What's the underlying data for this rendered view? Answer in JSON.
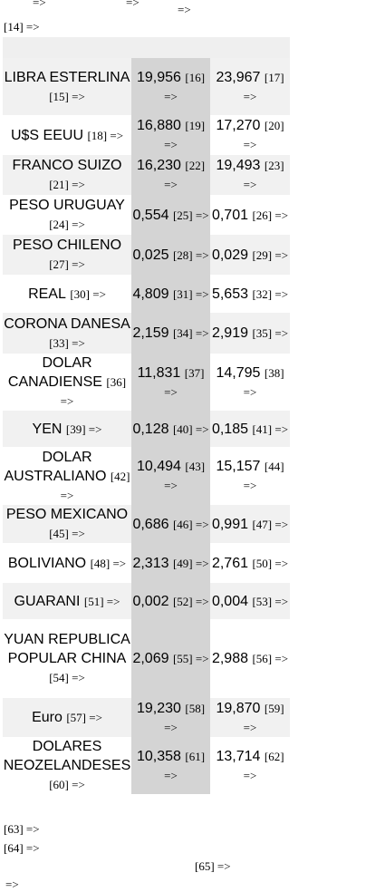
{
  "top_fragments": [
    "=>",
    "=>",
    "=>"
  ],
  "ref_14": "[14] =>",
  "rows": [
    {
      "currency": "LIBRA ESTERLINA",
      "ref_cur": "[15] =>",
      "buy": "19,956",
      "ref_buy": "[16] =>",
      "sell": "23,967",
      "ref_sell": "[17] =>"
    },
    {
      "currency": "U$S EEUU",
      "ref_cur": "[18] =>",
      "buy": "16,880",
      "ref_buy": "[19] =>",
      "sell": "17,270",
      "ref_sell": "[20] =>"
    },
    {
      "currency": "FRANCO SUIZO",
      "ref_cur": "[21] =>",
      "buy": "16,230",
      "ref_buy": "[22] =>",
      "sell": "19,493",
      "ref_sell": "[23] =>"
    },
    {
      "currency": "PESO URUGUAY",
      "ref_cur": "[24] =>",
      "buy": "0,554",
      "ref_buy": "[25] =>",
      "sell": "0,701",
      "ref_sell": "[26] =>"
    },
    {
      "currency": "PESO CHILENO",
      "ref_cur": "[27] =>",
      "buy": "0,025",
      "ref_buy": "[28] =>",
      "sell": "0,029",
      "ref_sell": "[29] =>"
    },
    {
      "currency": "REAL",
      "ref_cur": "[30] =>",
      "buy": "4,809",
      "ref_buy": "[31] =>",
      "sell": "5,653",
      "ref_sell": "[32] =>"
    },
    {
      "currency": "CORONA DANESA",
      "ref_cur": "[33] =>",
      "buy": "2,159",
      "ref_buy": "[34] =>",
      "sell": "2,919",
      "ref_sell": "[35] =>"
    },
    {
      "currency": "DOLAR CANADIENSE",
      "ref_cur": "[36] =>",
      "buy": "11,831",
      "ref_buy": "[37] =>",
      "sell": "14,795",
      "ref_sell": "[38] =>"
    },
    {
      "currency": "YEN",
      "ref_cur": "[39] =>",
      "buy": "0,128",
      "ref_buy": "[40] =>",
      "sell": "0,185",
      "ref_sell": "[41] =>"
    },
    {
      "currency": "DOLAR AUSTRALIANO",
      "ref_cur": "[42] =>",
      "buy": "10,494",
      "ref_buy": "[43] =>",
      "sell": "15,157",
      "ref_sell": "[44] =>"
    },
    {
      "currency": "PESO MEXICANO",
      "ref_cur": "[45] =>",
      "buy": "0,686",
      "ref_buy": "[46] =>",
      "sell": "0,991",
      "ref_sell": "[47] =>"
    },
    {
      "currency": "BOLIVIANO",
      "ref_cur": "[48] =>",
      "buy": "2,313",
      "ref_buy": "[49] =>",
      "sell": "2,761",
      "ref_sell": "[50] =>"
    },
    {
      "currency": "GUARANI",
      "ref_cur": "[51] =>",
      "buy": "0,002",
      "ref_buy": "[52] =>",
      "sell": "0,004",
      "ref_sell": "[53] =>"
    },
    {
      "currency": "YUAN REPUBLICA POPULAR CHINA",
      "ref_cur": "[54] =>",
      "buy": "2,069",
      "ref_buy": "[55] =>",
      "sell": "2,988",
      "ref_sell": "[56] =>"
    },
    {
      "currency": "Euro",
      "ref_cur": "[57] =>",
      "buy": "19,230",
      "ref_buy": "[58] =>",
      "sell": "19,870",
      "ref_sell": "[59] =>"
    },
    {
      "currency": "DOLARES NEOZELANDESES",
      "ref_cur": "[60] =>",
      "buy": "10,358",
      "ref_buy": "[61] =>",
      "sell": "13,714",
      "ref_sell": "[62] =>"
    }
  ],
  "bottom": {
    "ref_63": "[63] =>",
    "ref_64": "[64] =>",
    "ref_65": "[65] =>",
    "ref_tail": "=>"
  }
}
